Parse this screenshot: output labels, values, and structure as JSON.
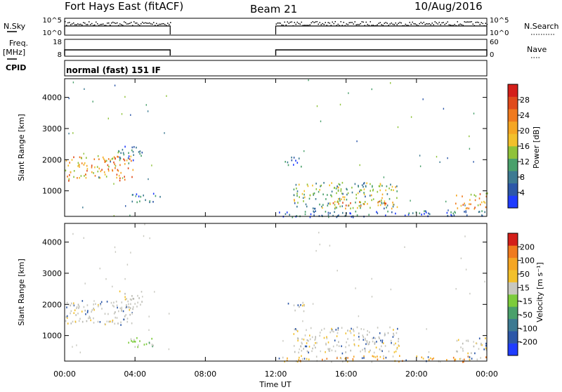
{
  "header": {
    "station": "Fort Hays East (fitACF)",
    "beam": "Beam 21",
    "date": "10/Aug/2016"
  },
  "sidebar": {
    "nsky": "N.Sky",
    "freq": "Freq.",
    "mhz": "[MHz]",
    "cpid": "CPID",
    "nsearch": "N.Search",
    "nave": "Nave"
  },
  "cpid_text": "normal (fast) 151 IF",
  "noise_axes": {
    "left_ticks": [
      "10^5",
      "10^0"
    ],
    "right_ticks": [
      "10^5",
      "10^0"
    ]
  },
  "freq_axes": {
    "left_ticks": [
      "18",
      "8"
    ],
    "right_ticks": [
      "60",
      "0"
    ]
  },
  "x_axis": {
    "label": "Time UT",
    "ticks": [
      "00:00",
      "04:00",
      "08:00",
      "12:00",
      "16:00",
      "20:00",
      "00:00"
    ],
    "hours": [
      0,
      4,
      8,
      12,
      16,
      20,
      24
    ]
  },
  "chart_data": [
    {
      "type": "heatmap",
      "name": "power",
      "xlabel": "Time UT",
      "ylabel": "Slant Range [km]",
      "xlim": [
        0,
        24
      ],
      "ylim": [
        180,
        4600
      ],
      "yticks": [
        1000,
        2000,
        3000,
        4000
      ],
      "colorbar": {
        "label": "Power [dB]",
        "ticks": [
          "4",
          "8",
          "12",
          "16",
          "20",
          "24",
          "28"
        ],
        "colors": [
          "#1f3cff",
          "#2c57a8",
          "#3d7a92",
          "#4aa06b",
          "#8fc23a",
          "#f2c02c",
          "#f5a623",
          "#f07a1e",
          "#e04a1b",
          "#d41f1a"
        ]
      },
      "regions": [
        {
          "t0": 0.0,
          "t1": 3.9,
          "r0": 1350,
          "r1": 2150,
          "level": "high"
        },
        {
          "t0": 3.0,
          "t1": 4.4,
          "r0": 1900,
          "r1": 2450,
          "level": "low"
        },
        {
          "t0": 3.8,
          "t1": 5.4,
          "r0": 650,
          "r1": 950,
          "level": "low"
        },
        {
          "t0": 12.5,
          "t1": 13.6,
          "r0": 1800,
          "r1": 2100,
          "level": "low"
        },
        {
          "t0": 13.0,
          "t1": 19.0,
          "r0": 450,
          "r1": 1300,
          "level": "mid"
        },
        {
          "t0": 15.0,
          "t1": 18.5,
          "r0": 480,
          "r1": 700,
          "level": "high"
        },
        {
          "t0": 22.2,
          "t1": 24.0,
          "r0": 450,
          "r1": 950,
          "level": "high"
        },
        {
          "t0": 12.0,
          "t1": 24.0,
          "r0": 180,
          "r1": 380,
          "level": "low"
        }
      ]
    },
    {
      "type": "heatmap",
      "name": "velocity",
      "xlabel": "Time UT",
      "ylabel": "Slant Range [km]",
      "xlim": [
        0,
        24
      ],
      "ylim": [
        180,
        4600
      ],
      "yticks": [
        1000,
        2000,
        3000,
        4000
      ],
      "colorbar": {
        "label": "Velocity [m s⁻¹]",
        "ticks": [
          "200",
          "100",
          "50",
          "15",
          "-15",
          "-50",
          "-100",
          "-200"
        ],
        "colors": [
          "#1f3cff",
          "#2c57a8",
          "#3d7a92",
          "#4aa06b",
          "#7ccc3b",
          "#c8c8c0",
          "#f2c02c",
          "#f5a623",
          "#f07a1e",
          "#d41f1a"
        ]
      },
      "regions": [
        {
          "t0": 0.0,
          "t1": 3.9,
          "r0": 1350,
          "r1": 2150,
          "level": "grey"
        },
        {
          "t0": 3.0,
          "t1": 4.4,
          "r0": 1900,
          "r1": 2450,
          "level": "grey"
        },
        {
          "t0": 3.4,
          "t1": 5.4,
          "r0": 650,
          "r1": 950,
          "level": "green"
        },
        {
          "t0": 12.5,
          "t1": 13.6,
          "r0": 1800,
          "r1": 2100,
          "level": "grey"
        },
        {
          "t0": 13.0,
          "t1": 19.0,
          "r0": 450,
          "r1": 1300,
          "level": "grey"
        },
        {
          "t0": 22.2,
          "t1": 24.0,
          "r0": 450,
          "r1": 950,
          "level": "grey"
        },
        {
          "t0": 12.0,
          "t1": 24.0,
          "r0": 180,
          "r1": 380,
          "level": "yellow"
        }
      ]
    }
  ]
}
